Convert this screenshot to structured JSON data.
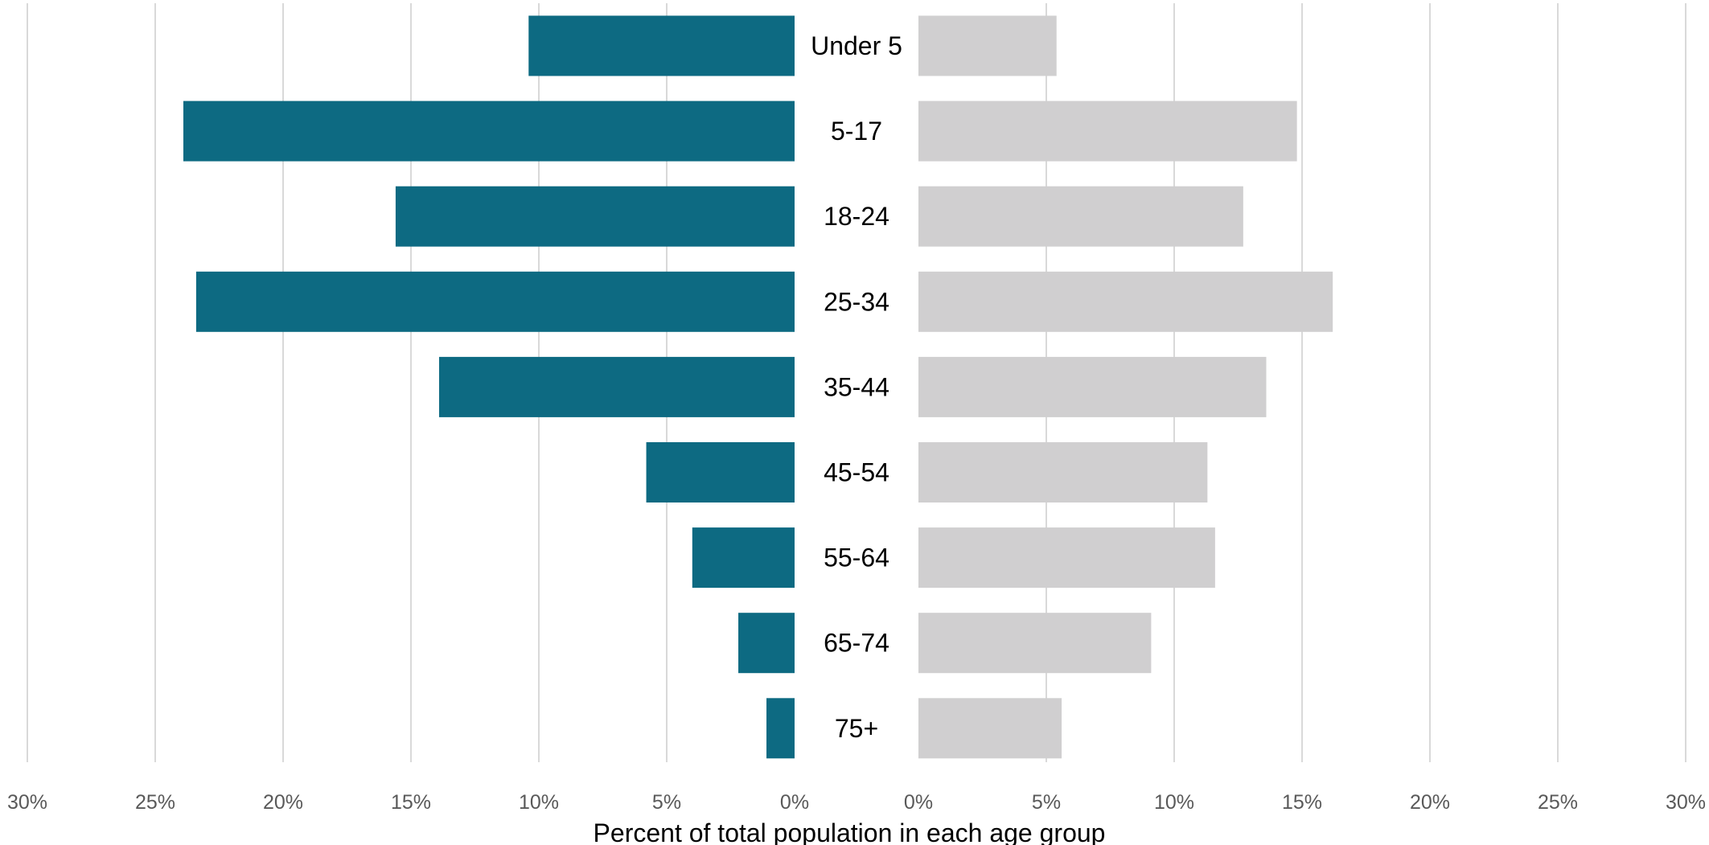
{
  "chart_data": {
    "type": "bar",
    "orientation": "horizontal",
    "layout": "population-pyramid",
    "categories": [
      "Under 5",
      "5-17",
      "18-24",
      "25-34",
      "35-44",
      "45-54",
      "55-64",
      "65-74",
      "75+"
    ],
    "series": [
      {
        "side": "left",
        "color": "#0d6a82",
        "values": [
          10.4,
          23.9,
          15.6,
          23.4,
          13.9,
          5.8,
          4.0,
          2.2,
          1.1
        ]
      },
      {
        "side": "right",
        "color": "#d0cfd0",
        "values": [
          5.4,
          14.8,
          12.7,
          16.2,
          13.6,
          11.3,
          11.6,
          9.1,
          5.6
        ]
      }
    ],
    "xlim": [
      0,
      30
    ],
    "x_ticks": [
      0,
      5,
      10,
      15,
      20,
      25,
      30
    ],
    "left_tick_labels": [
      "30%",
      "25%",
      "20%",
      "15%",
      "10%",
      "5%",
      "0%"
    ],
    "right_tick_labels": [
      "0%",
      "5%",
      "10%",
      "15%",
      "20%",
      "25%",
      "30%"
    ],
    "xlabel": "Percent of total population in each age group",
    "ylabel": "",
    "title": "",
    "grid": "vertical",
    "gridline_color": "#d9d9d9",
    "legend": "none"
  }
}
